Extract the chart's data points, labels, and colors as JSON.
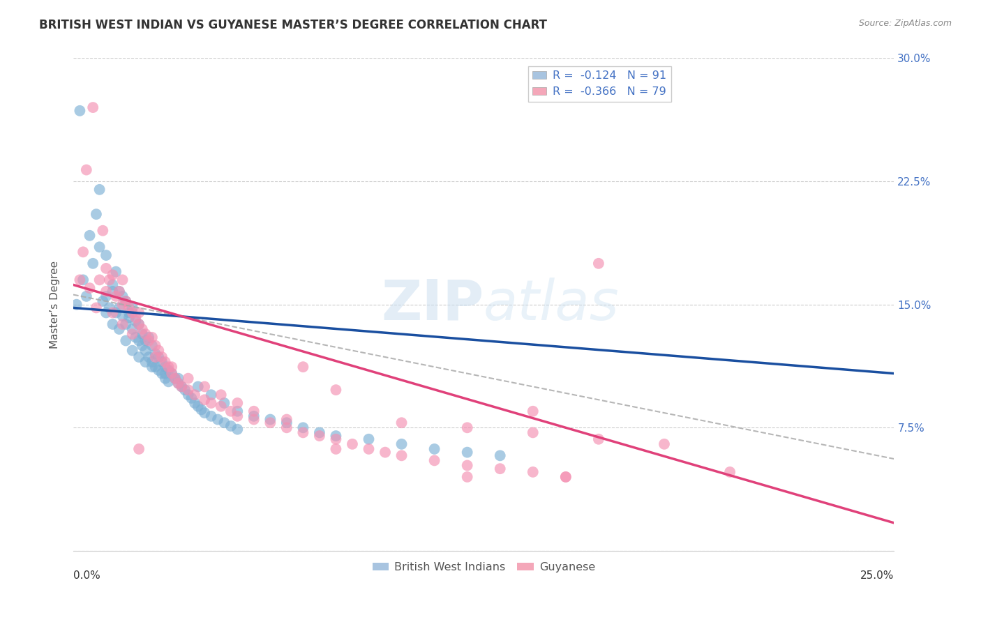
{
  "title": "BRITISH WEST INDIAN VS GUYANESE MASTER’S DEGREE CORRELATION CHART",
  "source": "Source: ZipAtlas.com",
  "ylabel_label": "Master’s Degree",
  "y_ticks": [
    0.0,
    0.075,
    0.15,
    0.225,
    0.3
  ],
  "y_tick_labels": [
    "",
    "7.5%",
    "15.0%",
    "22.5%",
    "30.0%"
  ],
  "xlim": [
    0.0,
    0.25
  ],
  "ylim": [
    0.0,
    0.3
  ],
  "bwi_color": "#7bafd4",
  "guy_color": "#f48fb1",
  "bwi_line_color": "#1a4fa0",
  "guy_line_color": "#e0417a",
  "dashed_line_color": "#aaaaaa",
  "bwi_intercept": 0.148,
  "bwi_slope": -0.16,
  "guy_intercept": 0.162,
  "guy_slope": -0.58,
  "dash_intercept": 0.156,
  "dash_slope": -0.4,
  "bwi_points": [
    [
      0.002,
      0.268
    ],
    [
      0.005,
      0.192
    ],
    [
      0.007,
      0.205
    ],
    [
      0.008,
      0.185
    ],
    [
      0.009,
      0.152
    ],
    [
      0.01,
      0.155
    ],
    [
      0.01,
      0.145
    ],
    [
      0.011,
      0.148
    ],
    [
      0.012,
      0.138
    ],
    [
      0.012,
      0.162
    ],
    [
      0.013,
      0.17
    ],
    [
      0.013,
      0.145
    ],
    [
      0.014,
      0.158
    ],
    [
      0.014,
      0.148
    ],
    [
      0.015,
      0.155
    ],
    [
      0.015,
      0.143
    ],
    [
      0.016,
      0.152
    ],
    [
      0.016,
      0.138
    ],
    [
      0.017,
      0.145
    ],
    [
      0.017,
      0.142
    ],
    [
      0.018,
      0.148
    ],
    [
      0.018,
      0.135
    ],
    [
      0.019,
      0.14
    ],
    [
      0.019,
      0.13
    ],
    [
      0.02,
      0.138
    ],
    [
      0.02,
      0.128
    ],
    [
      0.021,
      0.132
    ],
    [
      0.021,
      0.125
    ],
    [
      0.022,
      0.128
    ],
    [
      0.022,
      0.122
    ],
    [
      0.023,
      0.13
    ],
    [
      0.023,
      0.118
    ],
    [
      0.024,
      0.125
    ],
    [
      0.024,
      0.115
    ],
    [
      0.025,
      0.12
    ],
    [
      0.025,
      0.112
    ],
    [
      0.026,
      0.118
    ],
    [
      0.026,
      0.11
    ],
    [
      0.027,
      0.115
    ],
    [
      0.027,
      0.108
    ],
    [
      0.028,
      0.112
    ],
    [
      0.028,
      0.105
    ],
    [
      0.029,
      0.11
    ],
    [
      0.029,
      0.103
    ],
    [
      0.03,
      0.108
    ],
    [
      0.031,
      0.105
    ],
    [
      0.032,
      0.102
    ],
    [
      0.033,
      0.1
    ],
    [
      0.034,
      0.098
    ],
    [
      0.035,
      0.095
    ],
    [
      0.036,
      0.093
    ],
    [
      0.037,
      0.09
    ],
    [
      0.038,
      0.088
    ],
    [
      0.039,
      0.086
    ],
    [
      0.04,
      0.084
    ],
    [
      0.042,
      0.082
    ],
    [
      0.044,
      0.08
    ],
    [
      0.046,
      0.078
    ],
    [
      0.048,
      0.076
    ],
    [
      0.05,
      0.074
    ],
    [
      0.001,
      0.15
    ],
    [
      0.003,
      0.165
    ],
    [
      0.004,
      0.155
    ],
    [
      0.006,
      0.175
    ],
    [
      0.008,
      0.22
    ],
    [
      0.01,
      0.18
    ],
    [
      0.012,
      0.158
    ],
    [
      0.014,
      0.135
    ],
    [
      0.016,
      0.128
    ],
    [
      0.018,
      0.122
    ],
    [
      0.02,
      0.118
    ],
    [
      0.022,
      0.115
    ],
    [
      0.024,
      0.112
    ],
    [
      0.028,
      0.108
    ],
    [
      0.032,
      0.105
    ],
    [
      0.038,
      0.1
    ],
    [
      0.042,
      0.095
    ],
    [
      0.046,
      0.09
    ],
    [
      0.05,
      0.085
    ],
    [
      0.055,
      0.082
    ],
    [
      0.06,
      0.08
    ],
    [
      0.065,
      0.078
    ],
    [
      0.07,
      0.075
    ],
    [
      0.075,
      0.072
    ],
    [
      0.08,
      0.07
    ],
    [
      0.09,
      0.068
    ],
    [
      0.1,
      0.065
    ],
    [
      0.11,
      0.062
    ],
    [
      0.12,
      0.06
    ],
    [
      0.13,
      0.058
    ]
  ],
  "guy_points": [
    [
      0.002,
      0.165
    ],
    [
      0.004,
      0.232
    ],
    [
      0.006,
      0.27
    ],
    [
      0.008,
      0.165
    ],
    [
      0.009,
      0.195
    ],
    [
      0.01,
      0.172
    ],
    [
      0.011,
      0.165
    ],
    [
      0.012,
      0.168
    ],
    [
      0.013,
      0.155
    ],
    [
      0.014,
      0.158
    ],
    [
      0.015,
      0.15
    ],
    [
      0.015,
      0.165
    ],
    [
      0.016,
      0.152
    ],
    [
      0.017,
      0.148
    ],
    [
      0.018,
      0.145
    ],
    [
      0.019,
      0.142
    ],
    [
      0.02,
      0.138
    ],
    [
      0.021,
      0.135
    ],
    [
      0.022,
      0.132
    ],
    [
      0.023,
      0.128
    ],
    [
      0.024,
      0.13
    ],
    [
      0.025,
      0.125
    ],
    [
      0.026,
      0.122
    ],
    [
      0.027,
      0.118
    ],
    [
      0.028,
      0.115
    ],
    [
      0.029,
      0.112
    ],
    [
      0.03,
      0.108
    ],
    [
      0.031,
      0.105
    ],
    [
      0.032,
      0.102
    ],
    [
      0.033,
      0.1
    ],
    [
      0.035,
      0.098
    ],
    [
      0.037,
      0.095
    ],
    [
      0.04,
      0.092
    ],
    [
      0.042,
      0.09
    ],
    [
      0.045,
      0.088
    ],
    [
      0.048,
      0.085
    ],
    [
      0.05,
      0.082
    ],
    [
      0.055,
      0.08
    ],
    [
      0.06,
      0.078
    ],
    [
      0.065,
      0.075
    ],
    [
      0.07,
      0.072
    ],
    [
      0.075,
      0.07
    ],
    [
      0.08,
      0.068
    ],
    [
      0.085,
      0.065
    ],
    [
      0.09,
      0.062
    ],
    [
      0.095,
      0.06
    ],
    [
      0.1,
      0.058
    ],
    [
      0.11,
      0.055
    ],
    [
      0.12,
      0.052
    ],
    [
      0.13,
      0.05
    ],
    [
      0.14,
      0.048
    ],
    [
      0.15,
      0.045
    ],
    [
      0.003,
      0.182
    ],
    [
      0.005,
      0.16
    ],
    [
      0.007,
      0.148
    ],
    [
      0.01,
      0.158
    ],
    [
      0.012,
      0.145
    ],
    [
      0.015,
      0.138
    ],
    [
      0.018,
      0.132
    ],
    [
      0.02,
      0.145
    ],
    [
      0.025,
      0.118
    ],
    [
      0.03,
      0.112
    ],
    [
      0.035,
      0.105
    ],
    [
      0.04,
      0.1
    ],
    [
      0.045,
      0.095
    ],
    [
      0.05,
      0.09
    ],
    [
      0.055,
      0.085
    ],
    [
      0.065,
      0.08
    ],
    [
      0.07,
      0.112
    ],
    [
      0.08,
      0.098
    ],
    [
      0.1,
      0.078
    ],
    [
      0.12,
      0.075
    ],
    [
      0.14,
      0.072
    ],
    [
      0.16,
      0.068
    ],
    [
      0.18,
      0.065
    ],
    [
      0.02,
      0.062
    ],
    [
      0.12,
      0.045
    ],
    [
      0.15,
      0.045
    ],
    [
      0.16,
      0.175
    ],
    [
      0.08,
      0.062
    ],
    [
      0.14,
      0.085
    ],
    [
      0.2,
      0.048
    ]
  ]
}
